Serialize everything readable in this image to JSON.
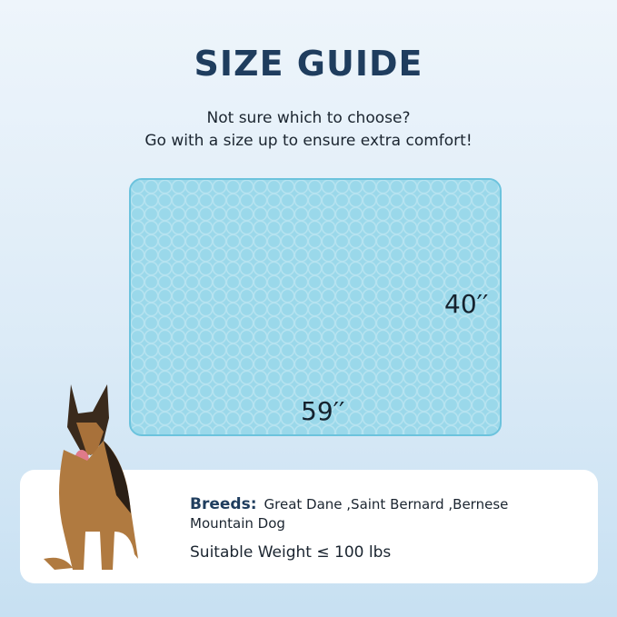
{
  "header": {
    "title": "SIZE GUIDE",
    "subtitle_line1": "Not sure which to choose?",
    "subtitle_line2": "Go with a size up to ensure extra comfort!"
  },
  "mat": {
    "width_label": "59′′",
    "height_label": "40′′",
    "color": "#9ad8ea"
  },
  "info": {
    "breeds_label": "Breeds:",
    "breeds_value": "Great Dane ,Saint Bernard ,Bernese Mountain Dog",
    "weight": "Suitable Weight ≤ 100 lbs"
  },
  "colors": {
    "title": "#1f3d5e",
    "background": "#dcebf7"
  }
}
